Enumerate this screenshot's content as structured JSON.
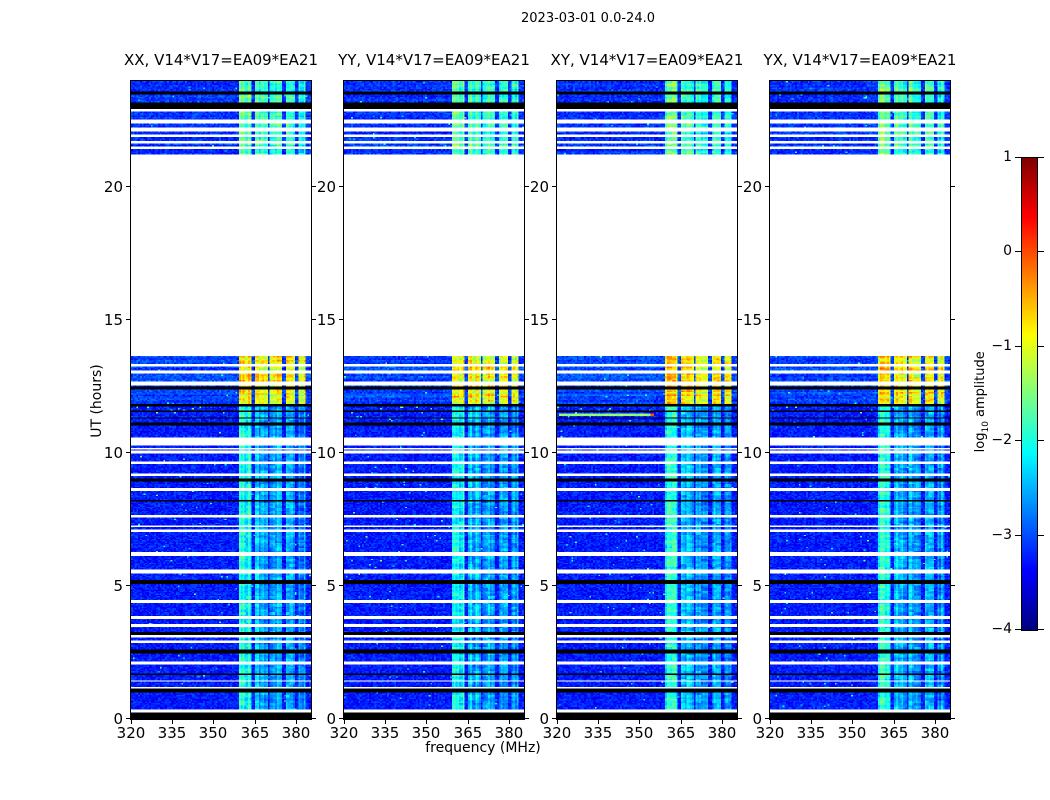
{
  "figure": {
    "title": "2023-03-01 0.0-24.0",
    "background_color": "#ffffff"
  },
  "axes": {
    "x_label": "frequency (MHz)",
    "y_label": "UT (hours)"
  },
  "colorbar": {
    "label_prefix": "log",
    "label_sub": "10",
    "label_suffix": " amplitude"
  },
  "chart_data": {
    "type": "heatmap",
    "title": "2023-03-01 0.0-24.0",
    "xlabel": "frequency (MHz)",
    "ylabel": "UT (hours)",
    "x_range_mhz": [
      320,
      385.5
    ],
    "x_ticks": [
      320,
      335,
      350,
      365,
      380
    ],
    "y_range_hours": [
      0,
      24
    ],
    "y_ticks": [
      0,
      5,
      10,
      15,
      20
    ],
    "grid": false,
    "colorbar": {
      "label": "log10 amplitude",
      "ticks": [
        1,
        0,
        -1,
        -2,
        -3,
        -4
      ],
      "vmin": -4,
      "vmax": 1,
      "colormap": "jet"
    },
    "panels": [
      {
        "label": "XX, V14*V17=EA09*EA21"
      },
      {
        "label": "YY, V14*V17=EA09*EA21"
      },
      {
        "label": "XY, V14*V17=EA09*EA21",
        "line_feature": {
          "hours": [
            11.4,
            11.5
          ],
          "freq": [
            320.5,
            354.0
          ],
          "level": -1.4,
          "dot_freq": 354.8,
          "dot_level": 0.0
        }
      },
      {
        "label": "YX, V14*V17=EA09*EA21"
      }
    ],
    "features": {
      "background_level": {
        "dim": -3.25,
        "hot": -3.05,
        "top": -3.15
      },
      "rfi_bands_mhz": [
        {
          "f": [
            359.3,
            363.8
          ],
          "dim": -2.05,
          "hot": -0.8,
          "top": -1.7
        },
        {
          "f": [
            364.9,
            369.6
          ],
          "dim": -2.5,
          "hot": -0.88,
          "top": -1.85
        },
        {
          "f": [
            370.4,
            374.9
          ],
          "dim": -2.55,
          "hot": -0.92,
          "top": -1.9
        },
        {
          "f": [
            376.2,
            379.9
          ],
          "dim": -2.6,
          "hot": -0.92,
          "top": -1.95
        },
        {
          "f": [
            380.6,
            383.3
          ],
          "dim": -2.7,
          "hot": -1.0,
          "top": -2.05
        }
      ],
      "hot_section_hours": [
        11.86,
        13.67
      ],
      "top_section_hours": [
        21.26,
        24.0
      ],
      "white_stripes_hours": [
        [
          13.67,
          21.26
        ],
        [
          22.84,
          22.97
        ],
        [
          22.4,
          22.52
        ],
        [
          22.1,
          22.22
        ],
        [
          21.9,
          21.97
        ],
        [
          21.63,
          21.74
        ],
        [
          21.44,
          21.52
        ],
        [
          13.24,
          13.35
        ],
        [
          13.02,
          13.09
        ],
        [
          12.57,
          12.68
        ],
        [
          10.31,
          10.61
        ],
        [
          10.12,
          10.19
        ],
        [
          10.0,
          10.08
        ],
        [
          9.59,
          9.7
        ],
        [
          9.14,
          9.25
        ],
        [
          8.58,
          8.69
        ],
        [
          7.6,
          7.67
        ],
        [
          7.22,
          7.3
        ],
        [
          7.03,
          7.11
        ],
        [
          6.13,
          6.28
        ],
        [
          5.49,
          5.64
        ],
        [
          4.36,
          4.48
        ],
        [
          3.76,
          3.88
        ],
        [
          3.46,
          3.57
        ],
        [
          3.05,
          3.16
        ],
        [
          2.86,
          2.97
        ],
        [
          2.07,
          2.14
        ],
        [
          1.39,
          1.47
        ],
        [
          1.13,
          1.2
        ],
        [
          0.23,
          0.34
        ]
      ],
      "black_stripes_hours": [
        [
          23.5,
          23.58
        ],
        [
          22.97,
          23.2
        ],
        [
          12.42,
          12.48
        ],
        [
          11.76,
          11.86
        ],
        [
          11.54,
          11.6
        ],
        [
          11.3,
          11.36
        ],
        [
          11.06,
          11.14
        ],
        [
          8.95,
          9.03
        ],
        [
          8.16,
          8.24
        ],
        [
          5.08,
          5.23
        ],
        [
          3.16,
          3.27
        ],
        [
          2.48,
          2.6
        ],
        [
          1.65,
          1.73
        ],
        [
          1.02,
          1.13
        ],
        [
          0.0,
          0.23
        ]
      ],
      "speckle_row": {
        "hours": [
          11.5,
          11.8
        ],
        "freq": [
          320,
          357
        ],
        "prob": 0.02,
        "level": -1.7
      }
    }
  }
}
